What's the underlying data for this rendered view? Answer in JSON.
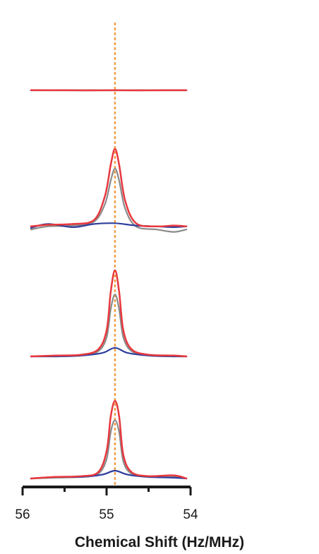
{
  "chart_data": {
    "type": "line",
    "title": "",
    "xlabel": "Chemical Shift (Hz/MHz)",
    "ylabel": "",
    "x_reversed": true,
    "xlim": [
      56,
      54
    ],
    "xticks": [
      56,
      55,
      54
    ],
    "xtick_labels": [
      "56",
      "55",
      "54"
    ],
    "reference_line": {
      "x": 54.9,
      "color": "#f0a04b",
      "style": "dotted"
    },
    "grid": false,
    "legend": "none",
    "colors": {
      "red": "#e8383d",
      "gray": "#8a8a8a",
      "blue": "#2f3f9c"
    },
    "panels": [
      {
        "name": "panel-1",
        "series": [
          {
            "color": "red",
            "x": [
              55.9,
              55.5,
              55.2,
              54.9,
              54.6,
              54.3,
              54.05
            ],
            "y": [
              0.02,
              0.01,
              0.0,
              0.01,
              0.0,
              0.01,
              0.01
            ]
          },
          {
            "color": "gray",
            "x": [
              55.9,
              55.5,
              55.2,
              54.9,
              54.6,
              54.3,
              54.05
            ],
            "y": [
              0.01,
              0.0,
              0.01,
              0.0,
              0.01,
              0.0,
              0.0
            ]
          },
          {
            "color": "blue",
            "x": [
              55.9,
              55.5,
              55.2,
              54.9,
              54.6,
              54.3,
              54.05
            ],
            "y": [
              0.0,
              0.01,
              0.0,
              0.01,
              0.0,
              0.02,
              0.01
            ]
          }
        ]
      },
      {
        "name": "panel-2",
        "series": [
          {
            "color": "red",
            "x": [
              55.9,
              55.7,
              55.4,
              55.15,
              55.02,
              54.95,
              54.9,
              54.85,
              54.78,
              54.65,
              54.4,
              54.2,
              54.05
            ],
            "y": [
              0.02,
              0.04,
              0.05,
              0.1,
              0.4,
              0.8,
              1.0,
              0.8,
              0.35,
              0.06,
              0.02,
              0.03,
              0.02
            ]
          },
          {
            "color": "gray",
            "x": [
              55.9,
              55.7,
              55.4,
              55.15,
              55.02,
              54.95,
              54.9,
              54.85,
              54.78,
              54.65,
              54.4,
              54.2,
              54.05
            ],
            "y": [
              -0.02,
              0.02,
              0.03,
              0.08,
              0.3,
              0.6,
              0.75,
              0.6,
              0.25,
              0.02,
              -0.02,
              -0.05,
              -0.02
            ]
          },
          {
            "color": "blue",
            "x": [
              55.9,
              55.7,
              55.4,
              55.15,
              54.9,
              54.65,
              54.4,
              54.2,
              54.05
            ],
            "y": [
              0.0,
              0.05,
              0.01,
              0.05,
              0.06,
              0.03,
              0.02,
              0.01,
              0.02
            ]
          }
        ]
      },
      {
        "name": "panel-3",
        "series": [
          {
            "color": "red",
            "x": [
              55.9,
              55.6,
              55.3,
              55.1,
              55.0,
              54.95,
              54.9,
              54.85,
              54.8,
              54.7,
              54.5,
              54.2,
              54.05
            ],
            "y": [
              0.0,
              0.01,
              0.02,
              0.08,
              0.3,
              0.75,
              1.0,
              0.75,
              0.3,
              0.08,
              0.02,
              0.01,
              0.0
            ]
          },
          {
            "color": "gray",
            "x": [
              55.9,
              55.6,
              55.3,
              55.1,
              55.0,
              54.95,
              54.9,
              54.85,
              54.8,
              54.7,
              54.5,
              54.2,
              54.05
            ],
            "y": [
              0.0,
              0.0,
              0.01,
              0.06,
              0.22,
              0.55,
              0.72,
              0.55,
              0.22,
              0.06,
              0.01,
              0.0,
              0.0
            ]
          },
          {
            "color": "blue",
            "x": [
              55.9,
              55.6,
              55.3,
              55.05,
              54.9,
              54.75,
              54.5,
              54.2,
              54.05
            ],
            "y": [
              0.0,
              0.0,
              0.01,
              0.04,
              0.1,
              0.04,
              0.01,
              0.0,
              0.0
            ]
          }
        ]
      },
      {
        "name": "panel-4",
        "series": [
          {
            "color": "red",
            "x": [
              55.9,
              55.6,
              55.3,
              55.1,
              55.0,
              54.95,
              54.9,
              54.85,
              54.8,
              54.7,
              54.5,
              54.2,
              54.05
            ],
            "y": [
              0.0,
              0.02,
              0.03,
              0.08,
              0.35,
              0.8,
              1.0,
              0.8,
              0.3,
              0.08,
              0.03,
              0.04,
              0.0
            ]
          },
          {
            "color": "gray",
            "x": [
              55.9,
              55.6,
              55.3,
              55.1,
              55.0,
              54.95,
              54.9,
              54.85,
              54.8,
              54.7,
              54.5,
              54.2,
              54.05
            ],
            "y": [
              0.0,
              0.01,
              0.02,
              0.06,
              0.25,
              0.6,
              0.75,
              0.6,
              0.22,
              0.06,
              0.02,
              0.02,
              0.0
            ]
          },
          {
            "color": "blue",
            "x": [
              55.9,
              55.6,
              55.3,
              55.05,
              54.9,
              54.75,
              54.5,
              54.2,
              54.05
            ],
            "y": [
              0.0,
              0.02,
              0.02,
              0.05,
              0.1,
              0.05,
              0.02,
              0.01,
              0.0
            ]
          }
        ]
      }
    ]
  }
}
